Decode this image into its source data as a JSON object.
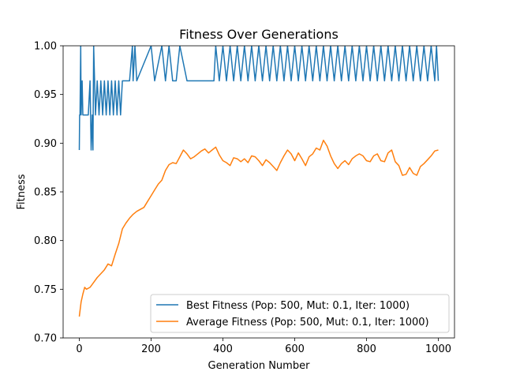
{
  "chart_data": {
    "type": "line",
    "title": "Fitness Over Generations",
    "xlabel": "Generation Number",
    "ylabel": "Fitness",
    "xlim": [
      -45,
      1045
    ],
    "ylim": [
      0.7,
      1.0
    ],
    "xticks": [
      0,
      200,
      400,
      600,
      800,
      1000
    ],
    "xtick_labels": [
      "0",
      "200",
      "400",
      "600",
      "800",
      "1000"
    ],
    "yticks": [
      0.7,
      0.75,
      0.8,
      0.85,
      0.9,
      0.95,
      1.0
    ],
    "ytick_labels": [
      "0.70",
      "0.75",
      "0.80",
      "0.85",
      "0.90",
      "0.95",
      "1.00"
    ],
    "grid": false,
    "legend_position": "lower-right",
    "series": [
      {
        "name": "Best Fitness (Pop: 500, Mut: 0.1, Iter: 1000)",
        "color": "#1f77b4",
        "x": [
          0,
          1,
          2,
          4,
          5,
          8,
          10,
          12,
          15,
          20,
          25,
          30,
          33,
          36,
          38,
          40,
          45,
          50,
          55,
          60,
          65,
          70,
          75,
          80,
          85,
          90,
          95,
          100,
          105,
          110,
          115,
          120,
          140,
          148,
          150,
          155,
          160,
          200,
          210,
          230,
          240,
          250,
          260,
          270,
          280,
          300,
          375,
          380,
          390,
          400,
          410,
          420,
          430,
          440,
          450,
          460,
          470,
          480,
          490,
          500,
          510,
          520,
          530,
          540,
          550,
          560,
          570,
          580,
          590,
          600,
          610,
          620,
          630,
          640,
          650,
          660,
          670,
          680,
          690,
          700,
          710,
          720,
          730,
          740,
          750,
          760,
          770,
          780,
          790,
          800,
          810,
          820,
          830,
          840,
          850,
          860,
          870,
          880,
          890,
          900,
          910,
          920,
          930,
          940,
          950,
          960,
          970,
          980,
          990,
          995,
          1000
        ],
        "y": [
          0.893,
          0.929,
          0.929,
          1.0,
          0.929,
          0.964,
          0.929,
          0.929,
          0.929,
          0.929,
          0.929,
          0.964,
          0.893,
          0.929,
          0.893,
          1.0,
          0.929,
          0.964,
          0.929,
          0.964,
          0.929,
          0.964,
          0.929,
          0.964,
          0.929,
          0.964,
          0.929,
          0.964,
          0.929,
          0.964,
          0.929,
          0.964,
          0.964,
          1.0,
          0.964,
          1.0,
          0.964,
          1.0,
          0.964,
          1.0,
          0.964,
          1.0,
          0.964,
          0.964,
          1.0,
          0.964,
          0.964,
          1.0,
          0.964,
          1.0,
          0.964,
          1.0,
          0.964,
          1.0,
          0.964,
          1.0,
          0.964,
          1.0,
          0.964,
          1.0,
          0.964,
          1.0,
          0.964,
          1.0,
          0.964,
          1.0,
          0.964,
          1.0,
          0.964,
          1.0,
          0.964,
          1.0,
          0.964,
          1.0,
          0.964,
          1.0,
          0.964,
          1.0,
          0.964,
          1.0,
          0.964,
          1.0,
          0.964,
          1.0,
          0.964,
          1.0,
          0.964,
          1.0,
          0.964,
          1.0,
          0.964,
          1.0,
          0.964,
          1.0,
          0.964,
          1.0,
          0.964,
          1.0,
          0.964,
          1.0,
          0.964,
          1.0,
          0.964,
          1.0,
          0.964,
          1.0,
          0.964,
          1.0,
          0.964,
          1.0,
          0.964
        ]
      },
      {
        "name": "Average Fitness (Pop: 500, Mut: 0.1, Iter: 1000)",
        "color": "#ff7f0e",
        "x": [
          0,
          5,
          10,
          15,
          20,
          30,
          40,
          50,
          60,
          70,
          80,
          90,
          100,
          110,
          120,
          130,
          140,
          150,
          160,
          170,
          180,
          190,
          200,
          210,
          220,
          230,
          240,
          250,
          260,
          270,
          280,
          290,
          300,
          310,
          320,
          330,
          340,
          350,
          360,
          370,
          380,
          390,
          400,
          410,
          420,
          430,
          440,
          450,
          460,
          470,
          480,
          490,
          500,
          510,
          520,
          530,
          540,
          550,
          560,
          570,
          580,
          590,
          600,
          610,
          620,
          630,
          640,
          650,
          660,
          670,
          680,
          690,
          700,
          710,
          720,
          730,
          740,
          750,
          760,
          770,
          780,
          790,
          800,
          810,
          820,
          830,
          840,
          850,
          860,
          870,
          880,
          890,
          900,
          910,
          920,
          930,
          940,
          950,
          960,
          970,
          980,
          990,
          1000
        ],
        "y": [
          0.722,
          0.737,
          0.745,
          0.752,
          0.75,
          0.752,
          0.757,
          0.762,
          0.766,
          0.77,
          0.776,
          0.774,
          0.786,
          0.797,
          0.812,
          0.818,
          0.823,
          0.827,
          0.83,
          0.832,
          0.834,
          0.84,
          0.846,
          0.852,
          0.858,
          0.862,
          0.872,
          0.878,
          0.88,
          0.879,
          0.886,
          0.893,
          0.889,
          0.884,
          0.886,
          0.889,
          0.892,
          0.894,
          0.89,
          0.893,
          0.896,
          0.888,
          0.882,
          0.88,
          0.877,
          0.885,
          0.884,
          0.881,
          0.884,
          0.88,
          0.887,
          0.886,
          0.882,
          0.877,
          0.883,
          0.88,
          0.876,
          0.872,
          0.88,
          0.887,
          0.893,
          0.889,
          0.882,
          0.89,
          0.884,
          0.877,
          0.886,
          0.889,
          0.895,
          0.893,
          0.903,
          0.897,
          0.887,
          0.879,
          0.874,
          0.879,
          0.882,
          0.878,
          0.884,
          0.887,
          0.889,
          0.887,
          0.882,
          0.881,
          0.887,
          0.889,
          0.882,
          0.881,
          0.89,
          0.893,
          0.881,
          0.877,
          0.867,
          0.868,
          0.875,
          0.869,
          0.867,
          0.876,
          0.879,
          0.883,
          0.887,
          0.892,
          0.893
        ]
      }
    ]
  }
}
